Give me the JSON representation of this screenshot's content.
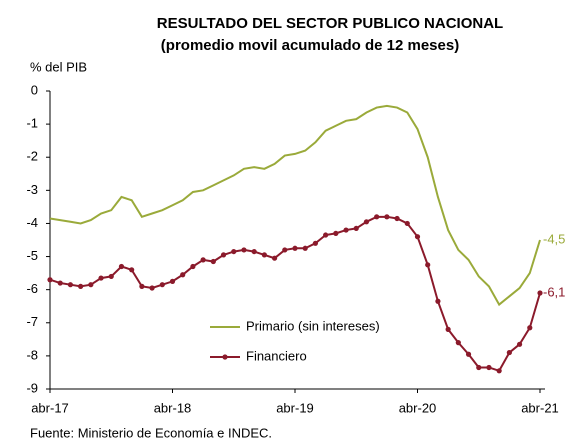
{
  "chart_data": {
    "type": "line",
    "title": "RESULTADO DEL SECTOR PUBLICO NACIONAL",
    "subtitle": "(promedio movil acumulado de 12 meses)",
    "y_label": "% del PIB",
    "source": "Fuente: Ministerio de Economía e INDEC.",
    "categories": [
      "abr-17",
      null,
      null,
      null,
      null,
      null,
      null,
      null,
      null,
      null,
      null,
      null,
      "abr-18",
      null,
      null,
      null,
      null,
      null,
      null,
      null,
      null,
      null,
      null,
      null,
      "abr-19",
      null,
      null,
      null,
      null,
      null,
      null,
      null,
      null,
      null,
      null,
      null,
      "abr-20",
      null,
      null,
      null,
      null,
      null,
      null,
      null,
      null,
      null,
      null,
      null,
      "abr-21"
    ],
    "series": [
      {
        "name": "Primario  (sin intereses)",
        "color": "#9aaa3a",
        "marker": false,
        "values": [
          -3.85,
          -3.9,
          -3.95,
          -4.0,
          -3.9,
          -3.7,
          -3.6,
          -3.2,
          -3.3,
          -3.8,
          -3.7,
          -3.6,
          -3.45,
          -3.3,
          -3.05,
          -3.0,
          -2.85,
          -2.7,
          -2.55,
          -2.35,
          -2.3,
          -2.35,
          -2.2,
          -1.95,
          -1.9,
          -1.8,
          -1.55,
          -1.2,
          -1.05,
          -0.9,
          -0.85,
          -0.65,
          -0.5,
          -0.45,
          -0.5,
          -0.65,
          -1.15,
          -2.0,
          -3.2,
          -4.2,
          -4.8,
          -5.1,
          -5.6,
          -5.9,
          -6.45,
          -6.2,
          -5.95,
          -5.5,
          -4.5
        ],
        "value_labels": [
          null,
          null,
          null,
          null,
          null,
          null,
          null,
          null,
          null,
          null,
          null,
          null,
          null,
          null,
          null,
          null,
          null,
          null,
          null,
          null,
          null,
          null,
          null,
          null,
          null,
          null,
          null,
          null,
          null,
          null,
          null,
          null,
          null,
          null,
          null,
          null,
          null,
          null,
          null,
          null,
          null,
          null,
          null,
          null,
          null,
          null,
          null,
          null,
          "-4,5"
        ]
      },
      {
        "name": "Financiero",
        "color": "#8b1a2b",
        "marker": true,
        "values": [
          -5.7,
          -5.8,
          -5.85,
          -5.9,
          -5.85,
          -5.65,
          -5.6,
          -5.3,
          -5.4,
          -5.9,
          -5.95,
          -5.85,
          -5.75,
          -5.55,
          -5.3,
          -5.1,
          -5.15,
          -4.95,
          -4.85,
          -4.8,
          -4.85,
          -4.95,
          -5.05,
          -4.8,
          -4.75,
          -4.75,
          -4.6,
          -4.35,
          -4.3,
          -4.2,
          -4.15,
          -3.95,
          -3.8,
          -3.8,
          -3.85,
          -4.0,
          -4.4,
          -5.25,
          -6.35,
          -7.2,
          -7.6,
          -7.95,
          -8.35,
          -8.35,
          -8.45,
          -7.9,
          -7.65,
          -7.15,
          -6.1
        ],
        "value_labels": [
          null,
          null,
          null,
          null,
          null,
          null,
          null,
          null,
          null,
          null,
          null,
          null,
          null,
          null,
          null,
          null,
          null,
          null,
          null,
          null,
          null,
          null,
          null,
          null,
          null,
          null,
          null,
          null,
          null,
          null,
          null,
          null,
          null,
          null,
          null,
          null,
          null,
          null,
          null,
          null,
          null,
          null,
          null,
          null,
          null,
          null,
          null,
          null,
          "-6,1"
        ]
      }
    ],
    "ylim": [
      -9,
      0
    ],
    "yticks": [
      0,
      -1,
      -2,
      -3,
      -4,
      -5,
      -6,
      -7,
      -8,
      -9
    ],
    "grid": false
  }
}
